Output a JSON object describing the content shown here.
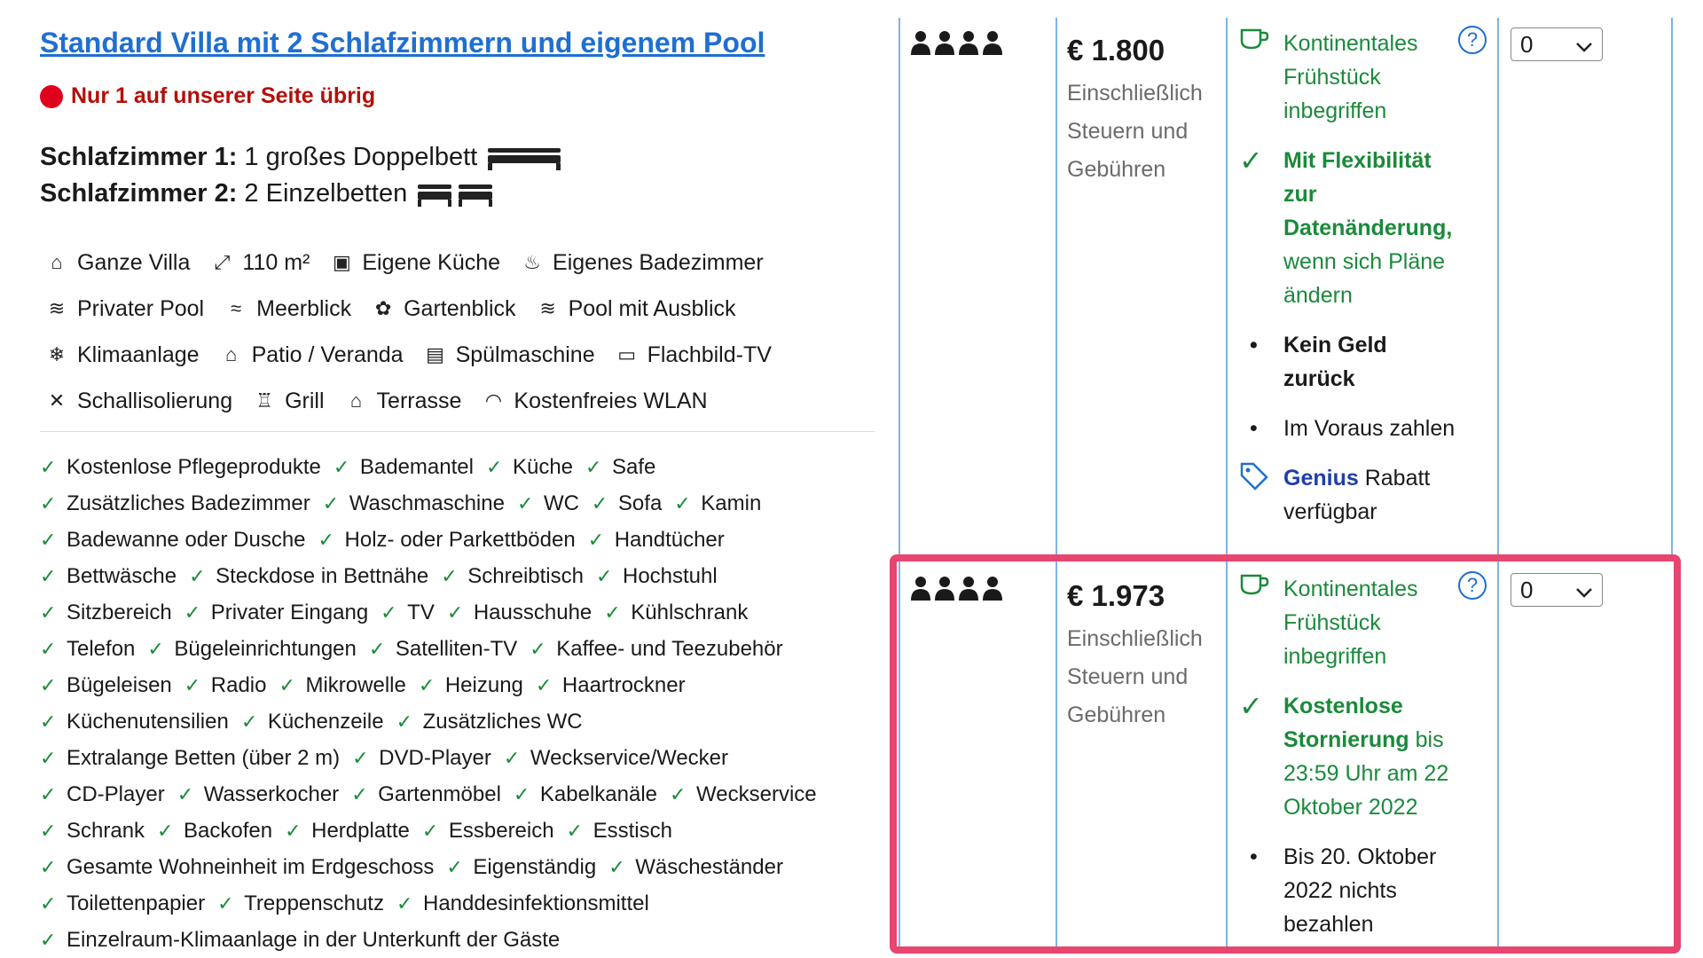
{
  "room": {
    "title": "Standard Villa mit 2 Schlafzimmern und eigenem Pool",
    "scarcity": "Nur 1 auf unserer Seite übrig",
    "bedrooms": [
      {
        "label": "Schlafzimmer 1:",
        "beds": "1 großes Doppelbett"
      },
      {
        "label": "Schlafzimmer 2:",
        "beds": "2 Einzelbetten"
      }
    ],
    "facilities": [
      [
        {
          "icon": "house-icon",
          "glyph": "⌂",
          "label": "Ganze Villa"
        },
        {
          "icon": "area-icon",
          "glyph": "⤢",
          "label": "110 m²"
        },
        {
          "icon": "kitchen-icon",
          "glyph": "▣",
          "label": "Eigene Küche"
        },
        {
          "icon": "bath-icon",
          "glyph": "♨",
          "label": "Eigenes Badezimmer"
        }
      ],
      [
        {
          "icon": "pool-icon",
          "glyph": "≋",
          "label": "Privater Pool"
        },
        {
          "icon": "sea-view-icon",
          "glyph": "≈",
          "label": "Meerblick"
        },
        {
          "icon": "garden-icon",
          "glyph": "✿",
          "label": "Gartenblick"
        },
        {
          "icon": "pool-view-icon",
          "glyph": "≋",
          "label": "Pool mit Ausblick"
        }
      ],
      [
        {
          "icon": "snowflake-icon",
          "glyph": "❄",
          "label": "Klimaanlage"
        },
        {
          "icon": "patio-icon",
          "glyph": "⌂",
          "label": "Patio / Veranda"
        },
        {
          "icon": "dishwasher-icon",
          "glyph": "▤",
          "label": "Spülmaschine"
        },
        {
          "icon": "tv-icon",
          "glyph": "▭",
          "label": "Flachbild-TV"
        }
      ],
      [
        {
          "icon": "soundproof-icon",
          "glyph": "✕",
          "label": "Schallisolierung"
        },
        {
          "icon": "grill-icon",
          "glyph": "♖",
          "label": "Grill"
        },
        {
          "icon": "terrace-icon",
          "glyph": "⌂",
          "label": "Terrasse"
        },
        {
          "icon": "wifi-icon",
          "glyph": "◠",
          "label": "Kostenfreies WLAN"
        }
      ]
    ],
    "amenities": [
      [
        "Kostenlose Pflegeprodukte",
        "Bademantel",
        "Küche",
        "Safe"
      ],
      [
        "Zusätzliches Badezimmer",
        "Waschmaschine",
        "WC",
        "Sofa",
        "Kamin"
      ],
      [
        "Badewanne oder Dusche",
        "Holz- oder Parkettböden",
        "Handtücher"
      ],
      [
        "Bettwäsche",
        "Steckdose in Bettnähe",
        "Schreibtisch",
        "Hochstuhl"
      ],
      [
        "Sitzbereich",
        "Privater Eingang",
        "TV",
        "Hausschuhe",
        "Kühlschrank"
      ],
      [
        "Telefon",
        "Bügeleinrichtungen",
        "Satelliten-TV",
        "Kaffee- und Teezubehör"
      ],
      [
        "Bügeleisen",
        "Radio",
        "Mikrowelle",
        "Heizung",
        "Haartrockner"
      ],
      [
        "Küchenutensilien",
        "Küchenzeile",
        "Zusätzliches WC"
      ],
      [
        "Extralange Betten (über 2 m)",
        "DVD-Player",
        "Weckservice/Wecker"
      ],
      [
        "CD-Player",
        "Wasserkocher",
        "Gartenmöbel",
        "Kabelkanäle",
        "Weckservice"
      ],
      [
        "Schrank",
        "Backofen",
        "Herdplatte",
        "Essbereich",
        "Esstisch"
      ],
      [
        "Gesamte Wohneinheit im Erdgeschoss",
        "Eigenständig",
        "Wäscheständer"
      ],
      [
        "Toilettenpapier",
        "Treppenschutz",
        "Handdesinfektionsmittel"
      ],
      [
        "Einzelraum-Klimaanlage in der Unterkunft der Gäste"
      ]
    ]
  },
  "offers": [
    {
      "price": "€ 1.800",
      "price_note": "Einschließlich Steuern und Gebühren",
      "breakfast": "Kontinentales Frühstück inbegriffen",
      "policy_bold": "Mit Flexibilität zur Datenänderung,",
      "policy_rest": "wenn sich Pläne ändern",
      "bullet1": "Kein Geld zurück",
      "bullet2": "Im Voraus zahlen",
      "genius_brand": "Genius",
      "genius_text": "Rabatt verfügbar",
      "select_value": "0"
    },
    {
      "price": "€ 1.973",
      "price_note": "Einschließlich Steuern und Gebühren",
      "breakfast": "Kontinentales Frühstück inbegriffen",
      "policy_bold": "Kostenlose Stornierung",
      "policy_rest": "bis 23:59 Uhr am 22 Oktober 2022",
      "bullet1": "Bis 20. Oktober 2022 nichts bezahlen",
      "select_value": "0"
    }
  ],
  "colors": {
    "link_blue": "#1f6fd0",
    "scarcity_red": "#b3100a",
    "success_green": "#1a8a3a",
    "highlight_pink": "#e8456f",
    "column_border": "#7fb3e8"
  }
}
